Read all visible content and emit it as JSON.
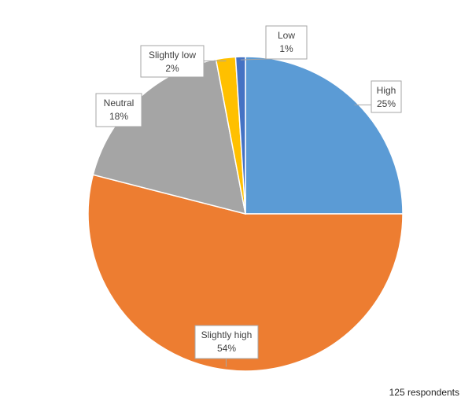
{
  "chart_data": {
    "type": "pie",
    "title": "",
    "slices": [
      {
        "label": "High",
        "value": 25,
        "display": "25%",
        "color": "#5B9BD5"
      },
      {
        "label": "Slightly high",
        "value": 54,
        "display": "54%",
        "color": "#ED7D31"
      },
      {
        "label": "Neutral",
        "value": 18,
        "display": "18%",
        "color": "#A5A5A5"
      },
      {
        "label": "Slightly low",
        "value": 2,
        "display": "2%",
        "color": "#FFC000"
      },
      {
        "label": "Low",
        "value": 1,
        "display": "1%",
        "color": "#4472C4"
      }
    ],
    "start_angle_deg": 0,
    "direction": "clockwise",
    "legend": "none",
    "data_labels": "callout"
  },
  "footnote": "125 respondents"
}
